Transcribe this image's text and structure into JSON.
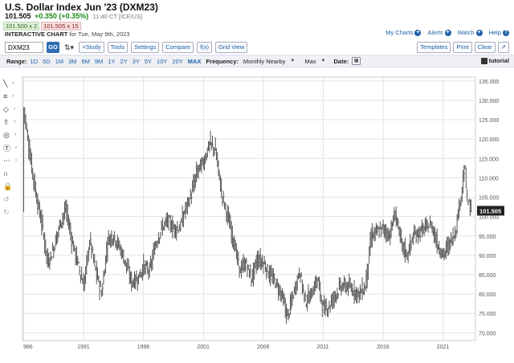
{
  "header": {
    "title": "U.S. Dollar Index Jun '23 (DXM23)",
    "last": "101.505",
    "change": "+0.350 (+0.35%)",
    "time": "11:40 CT [ICE/US]",
    "bid": "101.500 x 2",
    "ask": "101.505 x 15",
    "subtitle_bold": "INTERACTIVE CHART",
    "subtitle_date": "for Tue, May 9th, 2023"
  },
  "links": {
    "my_charts": "My Charts",
    "alerts": "Alerts",
    "watch": "Watch",
    "help": "Help"
  },
  "toolbar": {
    "symbol_value": "DXM23",
    "go": "GO",
    "study": "+Study",
    "tools": "Tools",
    "settings": "Settings",
    "compare": "Compare",
    "fx": "f(x)",
    "grid_view": "Grid View",
    "templates": "Templates",
    "print": "Print",
    "clear": "Clear"
  },
  "rangebar": {
    "range_label": "Range:",
    "ranges": [
      "1D",
      "5D",
      "1M",
      "3M",
      "6M",
      "9M",
      "1Y",
      "2Y",
      "3Y",
      "5Y",
      "10Y",
      "20Y",
      "MAX"
    ],
    "active_range": "MAX",
    "frequency_label": "Frequency:",
    "frequency_value": "Monthly Nearby",
    "max_value": "Max",
    "date_label": "Date:",
    "tutorial": "tutorial"
  },
  "side_tools": [
    "line-tool-icon",
    "fib-tool-icon",
    "shape-tool-icon",
    "arrow-tool-icon",
    "circle-tool-icon",
    "text-tool-icon",
    "lock-tool-icon",
    "magnet-tool-icon",
    "padlock-tool-icon",
    "undo-icon",
    "redo-icon"
  ],
  "chart_data": {
    "type": "ohlc",
    "title": "",
    "xlabel": "",
    "ylabel": "",
    "ylim": [
      68,
      136
    ],
    "yticks": [
      "135.000",
      "130.000",
      "125.000",
      "120.000",
      "115.000",
      "110.000",
      "105.000",
      "100.000",
      "95.000",
      "90.000",
      "85.000",
      "80.000",
      "75.000",
      "70.000"
    ],
    "xticks": [
      "986",
      "1991",
      "1996",
      "2001",
      "2006",
      "2011",
      "2016",
      "2021"
    ],
    "last_label": "101.505",
    "series": [
      {
        "x": 1986.0,
        "y": 128
      },
      {
        "x": 1986.5,
        "y": 116
      },
      {
        "x": 1987.0,
        "y": 106
      },
      {
        "x": 1987.5,
        "y": 98
      },
      {
        "x": 1988.0,
        "y": 88
      },
      {
        "x": 1988.5,
        "y": 92
      },
      {
        "x": 1989.0,
        "y": 98
      },
      {
        "x": 1989.5,
        "y": 102
      },
      {
        "x": 1990.0,
        "y": 94
      },
      {
        "x": 1990.5,
        "y": 88
      },
      {
        "x": 1991.0,
        "y": 82
      },
      {
        "x": 1991.5,
        "y": 94
      },
      {
        "x": 1992.0,
        "y": 86
      },
      {
        "x": 1992.5,
        "y": 80
      },
      {
        "x": 1993.0,
        "y": 94
      },
      {
        "x": 1993.5,
        "y": 95
      },
      {
        "x": 1994.0,
        "y": 92
      },
      {
        "x": 1994.5,
        "y": 88
      },
      {
        "x": 1995.0,
        "y": 83
      },
      {
        "x": 1995.5,
        "y": 84
      },
      {
        "x": 1996.0,
        "y": 87
      },
      {
        "x": 1996.5,
        "y": 86
      },
      {
        "x": 1997.0,
        "y": 93
      },
      {
        "x": 1997.5,
        "y": 97
      },
      {
        "x": 1998.0,
        "y": 99
      },
      {
        "x": 1998.5,
        "y": 97
      },
      {
        "x": 1999.0,
        "y": 97
      },
      {
        "x": 1999.5,
        "y": 102
      },
      {
        "x": 2000.0,
        "y": 106
      },
      {
        "x": 2000.5,
        "y": 112
      },
      {
        "x": 2001.0,
        "y": 114
      },
      {
        "x": 2001.5,
        "y": 119
      },
      {
        "x": 2002.0,
        "y": 117
      },
      {
        "x": 2002.5,
        "y": 106
      },
      {
        "x": 2003.0,
        "y": 100
      },
      {
        "x": 2003.5,
        "y": 94
      },
      {
        "x": 2004.0,
        "y": 86
      },
      {
        "x": 2004.5,
        "y": 88
      },
      {
        "x": 2005.0,
        "y": 84
      },
      {
        "x": 2005.5,
        "y": 89
      },
      {
        "x": 2006.0,
        "y": 88
      },
      {
        "x": 2006.5,
        "y": 85
      },
      {
        "x": 2007.0,
        "y": 83
      },
      {
        "x": 2007.5,
        "y": 80
      },
      {
        "x": 2008.0,
        "y": 74
      },
      {
        "x": 2008.5,
        "y": 80
      },
      {
        "x": 2009.0,
        "y": 86
      },
      {
        "x": 2009.5,
        "y": 78
      },
      {
        "x": 2010.0,
        "y": 80
      },
      {
        "x": 2010.5,
        "y": 84
      },
      {
        "x": 2011.0,
        "y": 76
      },
      {
        "x": 2011.5,
        "y": 77
      },
      {
        "x": 2012.0,
        "y": 80
      },
      {
        "x": 2012.5,
        "y": 82
      },
      {
        "x": 2013.0,
        "y": 82
      },
      {
        "x": 2013.5,
        "y": 81
      },
      {
        "x": 2014.0,
        "y": 80
      },
      {
        "x": 2014.5,
        "y": 82
      },
      {
        "x": 2015.0,
        "y": 95
      },
      {
        "x": 2015.5,
        "y": 96
      },
      {
        "x": 2016.0,
        "y": 97
      },
      {
        "x": 2016.5,
        "y": 95
      },
      {
        "x": 2017.0,
        "y": 101
      },
      {
        "x": 2017.5,
        "y": 93
      },
      {
        "x": 2018.0,
        "y": 90
      },
      {
        "x": 2018.5,
        "y": 95
      },
      {
        "x": 2019.0,
        "y": 96
      },
      {
        "x": 2019.5,
        "y": 97
      },
      {
        "x": 2020.0,
        "y": 98
      },
      {
        "x": 2020.5,
        "y": 93
      },
      {
        "x": 2021.0,
        "y": 90
      },
      {
        "x": 2021.5,
        "y": 93
      },
      {
        "x": 2022.0,
        "y": 96
      },
      {
        "x": 2022.5,
        "y": 106
      },
      {
        "x": 2022.8,
        "y": 113
      },
      {
        "x": 2023.0,
        "y": 104
      },
      {
        "x": 2023.35,
        "y": 101.5
      }
    ]
  },
  "colors": {
    "accent": "#1f5fa8",
    "bars": "#555555",
    "grid": "#e3e3e3",
    "last_box": "#222222",
    "change_up": "#1a8a1a"
  }
}
